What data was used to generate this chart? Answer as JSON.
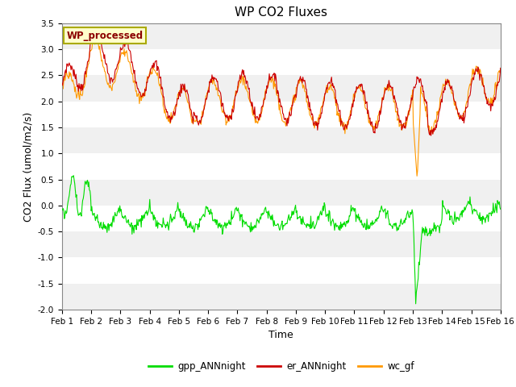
{
  "title": "WP CO2 Fluxes",
  "xlabel": "Time",
  "ylabel": "CO2 Flux (umol/m2/s)",
  "ylim": [
    -2.0,
    3.5
  ],
  "xlim": [
    0,
    15
  ],
  "xtick_labels": [
    "Feb 1",
    "Feb 2",
    "Feb 3",
    "Feb 4",
    "Feb 5",
    "Feb 6",
    "Feb 7",
    "Feb 8",
    "Feb 9",
    "Feb 10",
    "Feb 11",
    "Feb 12",
    "Feb 13",
    "Feb 14",
    "Feb 15",
    "Feb 16"
  ],
  "ytick_values": [
    -2.0,
    -1.5,
    -1.0,
    -0.5,
    0.0,
    0.5,
    1.0,
    1.5,
    2.0,
    2.5,
    3.0,
    3.5
  ],
  "color_gpp": "#00dd00",
  "color_er": "#cc0000",
  "color_wc": "#ff9900",
  "legend_label": "WP_processed",
  "legend_bg": "#ffffcc",
  "legend_text_color": "#8b0000",
  "legend_edge_color": "#aaaa00",
  "series_labels": [
    "gpp_ANNnight",
    "er_ANNnight",
    "wc_gf"
  ],
  "gray_band_alpha": 0.18,
  "n_points": 720,
  "title_fontsize": 11,
  "axis_fontsize": 9,
  "tick_fontsize": 7.5
}
